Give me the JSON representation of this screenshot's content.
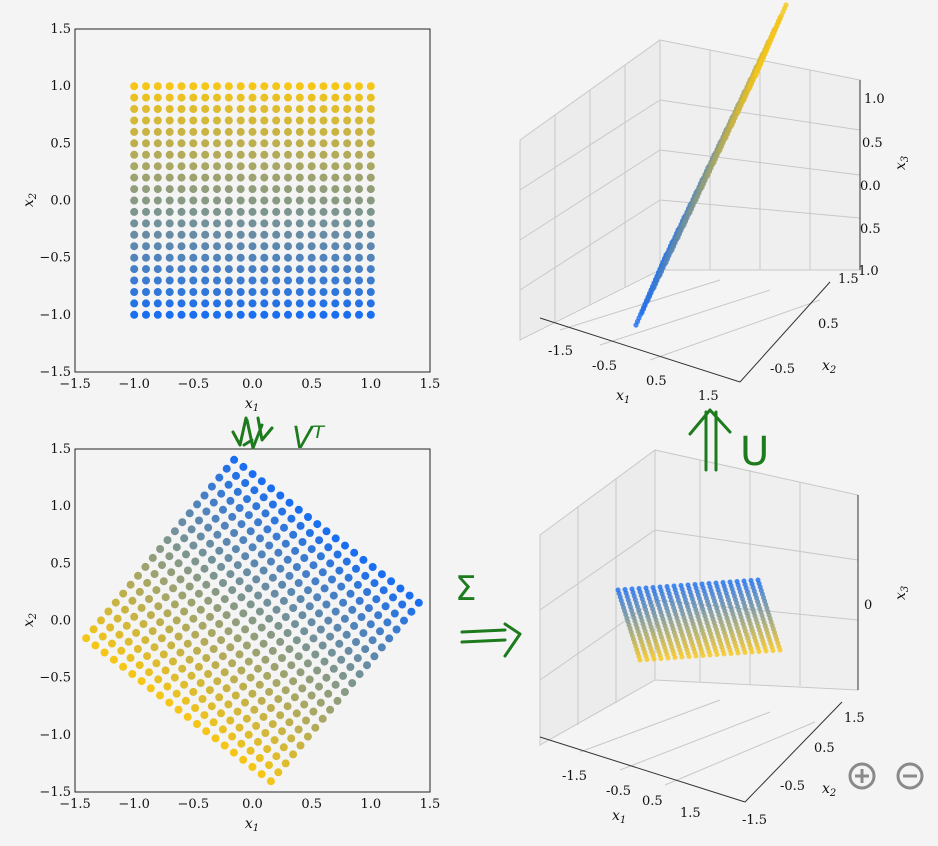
{
  "annotations": {
    "vt": "Vᵀ",
    "u": "U",
    "sigma": "Σ"
  },
  "zoom": {
    "in_icon": "zoom-in-icon",
    "out_icon": "zoom-out-icon"
  },
  "colors": {
    "blue": "#1a6ef0",
    "yellow": "#f5c518",
    "background": "#f4f4f4",
    "annotation_ink": "#1d7a1d"
  },
  "chart_data": [
    {
      "type": "scatter",
      "panel": "top-left",
      "xlabel": "x_1",
      "ylabel": "x_2",
      "xlim": [
        -1.5,
        1.5
      ],
      "ylim": [
        -1.5,
        1.5
      ],
      "ticks": [
        "−1.5",
        "−1.0",
        "−0.5",
        "0.0",
        "0.5",
        "1.0",
        "1.5"
      ],
      "grid": "21x21 points on [-1,1]x[-1,1]",
      "color_encoding": "blue at x2=-1 to yellow at x2=1"
    },
    {
      "type": "scatter",
      "panel": "bottom-left",
      "xlabel": "x_1",
      "ylabel": "x_2",
      "xlim": [
        -1.5,
        1.5
      ],
      "ylim": [
        -1.5,
        1.5
      ],
      "ticks": [
        "−1.5",
        "−1.0",
        "−0.5",
        "0.0",
        "0.5",
        "1.0",
        "1.5"
      ],
      "transform": "rotation of square grid (Vᵀ applied)"
    },
    {
      "type": "scatter",
      "panel": "top-right-3d",
      "xlabel": "x_1",
      "ylabel": "x_2",
      "zlabel": "x_3",
      "x_ticks": [
        "-1.5",
        "-0.5",
        "0.5",
        "1.5"
      ],
      "y_ticks": [
        "-0.5",
        "0.5",
        "1.5"
      ],
      "z_ticks": [
        "1.0",
        "0.5",
        "0.0",
        "0.5",
        "1.0"
      ]
    },
    {
      "type": "scatter",
      "panel": "bottom-right-3d",
      "xlabel": "x_1",
      "ylabel": "x_2",
      "zlabel": "x_3",
      "x_ticks": [
        "-1.5",
        "-0.5",
        "0.5",
        "1.5"
      ],
      "y_ticks": [
        "-1.5",
        "-0.5",
        "0.5",
        "1.5"
      ],
      "z_ticks": [
        "0"
      ]
    }
  ]
}
